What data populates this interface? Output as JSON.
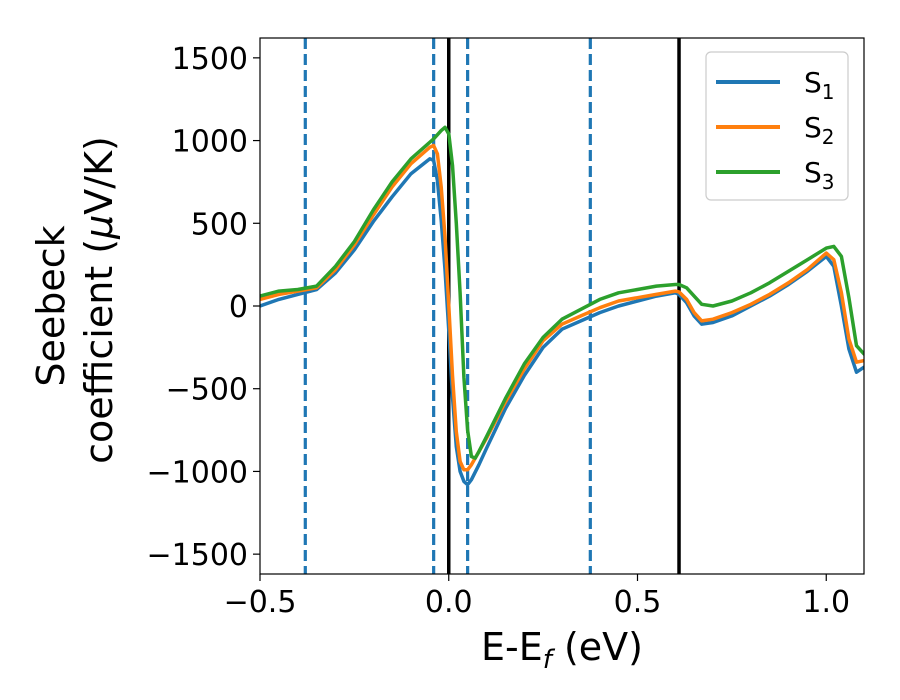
{
  "chart_data": {
    "type": "line",
    "xlabel": "E-E",
    "xlabel_sub": "f",
    "xlabel_unit": " (eV)",
    "ylabel_line1": "Seebeck",
    "ylabel_line2": "coefficient  (",
    "ylabel_mu": "μ",
    "ylabel_unit": "V/K)",
    "xlim": [
      -0.5,
      1.1
    ],
    "ylim": [
      -1620,
      1620
    ],
    "xticks": [
      -0.5,
      0.0,
      0.5,
      1.0
    ],
    "xtick_labels": [
      "−0.5",
      "0.0",
      "0.5",
      "1.0"
    ],
    "yticks": [
      1500,
      1000,
      500,
      0,
      -500,
      -1000,
      -1500
    ],
    "ytick_labels": [
      "1500",
      "1000",
      "500",
      "0",
      "−500",
      "−1000",
      "−1500"
    ],
    "legend_position": "top-right",
    "vlines_dashed": {
      "x": [
        -0.38,
        -0.04,
        0.05,
        0.375
      ],
      "color": "#1f77b4"
    },
    "vlines_solid": {
      "x": [
        0.0,
        0.61
      ],
      "color": "#000000"
    },
    "series": [
      {
        "name": "S",
        "name_sub": "1",
        "color": "#1f77b4",
        "x": [
          -0.5,
          -0.45,
          -0.4,
          -0.35,
          -0.3,
          -0.25,
          -0.2,
          -0.15,
          -0.1,
          -0.05,
          -0.04,
          -0.03,
          -0.02,
          -0.01,
          0.0,
          0.01,
          0.02,
          0.03,
          0.04,
          0.05,
          0.06,
          0.08,
          0.1,
          0.15,
          0.2,
          0.25,
          0.3,
          0.35,
          0.4,
          0.45,
          0.5,
          0.55,
          0.6,
          0.61,
          0.63,
          0.65,
          0.67,
          0.7,
          0.75,
          0.8,
          0.85,
          0.9,
          0.95,
          1.0,
          1.02,
          1.04,
          1.06,
          1.08,
          1.1
        ],
        "y": [
          0,
          40,
          70,
          100,
          200,
          340,
          510,
          660,
          800,
          890,
          880,
          760,
          520,
          220,
          -150,
          -550,
          -850,
          -1000,
          -1060,
          -1080,
          -1050,
          -960,
          -860,
          -620,
          -420,
          -250,
          -140,
          -90,
          -40,
          0,
          30,
          60,
          80,
          70,
          20,
          -60,
          -110,
          -100,
          -60,
          0,
          60,
          130,
          210,
          300,
          240,
          0,
          -260,
          -400,
          -370
        ]
      },
      {
        "name": "S",
        "name_sub": "2",
        "color": "#ff7f0e",
        "x": [
          -0.5,
          -0.45,
          -0.4,
          -0.35,
          -0.3,
          -0.25,
          -0.2,
          -0.15,
          -0.1,
          -0.05,
          -0.04,
          -0.03,
          -0.02,
          -0.01,
          0.0,
          0.01,
          0.02,
          0.03,
          0.04,
          0.05,
          0.06,
          0.08,
          0.1,
          0.15,
          0.2,
          0.25,
          0.3,
          0.35,
          0.4,
          0.45,
          0.5,
          0.55,
          0.6,
          0.61,
          0.63,
          0.65,
          0.67,
          0.7,
          0.75,
          0.8,
          0.85,
          0.9,
          0.95,
          1.0,
          1.02,
          1.04,
          1.06,
          1.08,
          1.1
        ],
        "y": [
          40,
          70,
          90,
          110,
          220,
          370,
          550,
          720,
          860,
          960,
          970,
          920,
          720,
          420,
          0,
          -420,
          -760,
          -940,
          -990,
          -990,
          -960,
          -880,
          -800,
          -580,
          -380,
          -210,
          -110,
          -60,
          -10,
          30,
          50,
          70,
          90,
          85,
          40,
          -40,
          -90,
          -80,
          -40,
          10,
          70,
          140,
          220,
          320,
          280,
          80,
          -200,
          -340,
          -330
        ]
      },
      {
        "name": "S",
        "name_sub": "3",
        "color": "#2ca02c",
        "x": [
          -0.5,
          -0.45,
          -0.4,
          -0.35,
          -0.3,
          -0.25,
          -0.2,
          -0.15,
          -0.1,
          -0.05,
          -0.04,
          -0.02,
          -0.01,
          0.0,
          0.01,
          0.02,
          0.03,
          0.04,
          0.05,
          0.06,
          0.07,
          0.08,
          0.1,
          0.15,
          0.2,
          0.25,
          0.3,
          0.35,
          0.4,
          0.45,
          0.5,
          0.55,
          0.6,
          0.61,
          0.63,
          0.65,
          0.67,
          0.7,
          0.75,
          0.8,
          0.85,
          0.9,
          0.95,
          1.0,
          1.02,
          1.04,
          1.06,
          1.08,
          1.1
        ],
        "y": [
          60,
          90,
          100,
          120,
          240,
          390,
          580,
          750,
          890,
          990,
          1010,
          1060,
          1080,
          1040,
          850,
          500,
          80,
          -430,
          -750,
          -910,
          -920,
          -880,
          -790,
          -560,
          -350,
          -190,
          -80,
          -20,
          40,
          80,
          100,
          120,
          130,
          130,
          110,
          60,
          10,
          0,
          30,
          80,
          140,
          210,
          280,
          350,
          360,
          300,
          50,
          -240,
          -290
        ]
      }
    ]
  }
}
